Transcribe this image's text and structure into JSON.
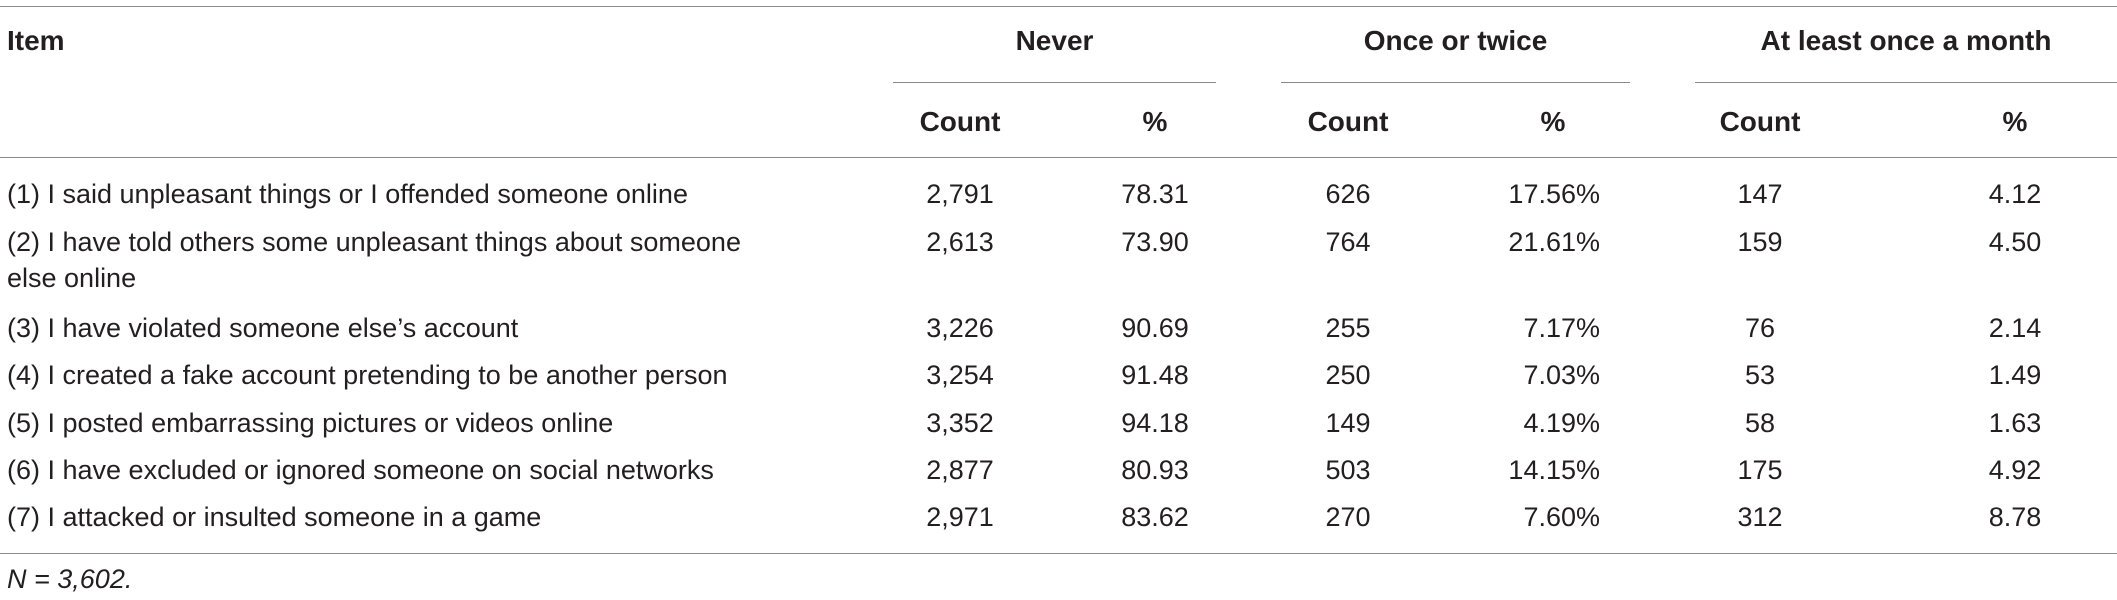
{
  "table": {
    "item_header": "Item",
    "groups": [
      {
        "label": "Never",
        "count_label": "Count",
        "pct_label": "%"
      },
      {
        "label": "Once or twice",
        "count_label": "Count",
        "pct_label": "%"
      },
      {
        "label": "At least once a month",
        "count_label": "Count",
        "pct_label": "%"
      }
    ],
    "rows": [
      {
        "item": "(1) I said unpleasant things or I offended someone online",
        "values": [
          "2,791",
          "78.31",
          "626",
          "17.56%",
          "147",
          "4.12"
        ]
      },
      {
        "item": "(2) I have told others some unpleasant things about someone else online",
        "values": [
          "2,613",
          "73.90",
          "764",
          "21.61%",
          "159",
          "4.50"
        ]
      },
      {
        "item": "(3) I have violated someone else’s account",
        "values": [
          "3,226",
          "90.69",
          "255",
          "7.17%",
          "76",
          "2.14"
        ]
      },
      {
        "item": "(4) I created a fake account pretending to be another person",
        "values": [
          "3,254",
          "91.48",
          "250",
          "7.03%",
          "53",
          "1.49"
        ]
      },
      {
        "item": "(5) I posted embarrassing pictures or videos online",
        "values": [
          "3,352",
          "94.18",
          "149",
          "4.19%",
          "58",
          "1.63"
        ]
      },
      {
        "item": "(6) I have excluded or ignored someone on social networks",
        "values": [
          "2,877",
          "80.93",
          "503",
          "14.15%",
          "175",
          "4.92"
        ]
      },
      {
        "item": "(7) I attacked or insulted someone in a game",
        "values": [
          "2,971",
          "83.62",
          "270",
          "7.60%",
          "312",
          "8.78"
        ]
      }
    ]
  },
  "note": "N = 3,602."
}
